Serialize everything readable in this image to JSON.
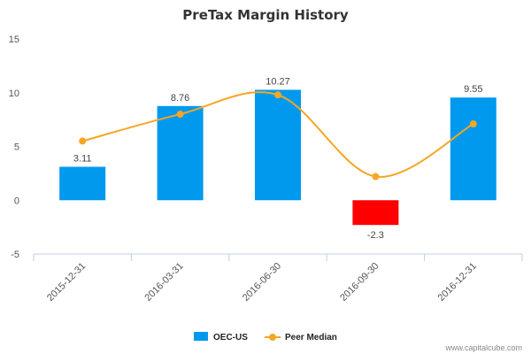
{
  "chart_data": {
    "type": "bar",
    "title": "PreTax Margin History",
    "categories": [
      "2015-12-31",
      "2016-03-31",
      "2016-06-30",
      "2016-09-30",
      "2016-12-31"
    ],
    "series": [
      {
        "name": "OEC-US",
        "type": "bar",
        "values": [
          3.11,
          8.76,
          10.27,
          -2.3,
          9.55
        ],
        "labels": [
          "3.11",
          "8.76",
          "10.27",
          "-2.3",
          "9.55"
        ],
        "color": "#0099ee",
        "negative_color": "#ff0000"
      },
      {
        "name": "Peer Median",
        "type": "line",
        "smooth": true,
        "values": [
          5.5,
          8.0,
          9.8,
          2.2,
          7.1
        ],
        "color": "#f5a623"
      }
    ],
    "ylim": [
      -5,
      15
    ],
    "yticks": [
      "-5",
      "0",
      "5",
      "10",
      "15"
    ],
    "ytick_values": [
      -5,
      0,
      5,
      10,
      15
    ],
    "legend_position": "bottom-center",
    "grid": false
  },
  "credit": "www.capitalcube.com"
}
